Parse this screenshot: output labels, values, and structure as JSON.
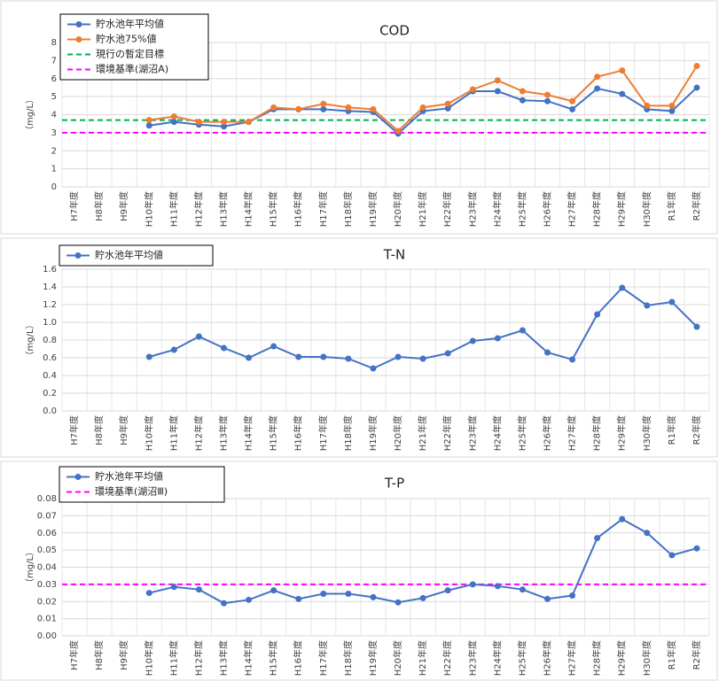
{
  "chart_data": [
    {
      "type": "line",
      "title": "COD",
      "y_label": "（mg/L）",
      "categories": [
        "H7年度",
        "H8年度",
        "H9年度",
        "H10年度",
        "H11年度",
        "H12年度",
        "H13年度",
        "H14年度",
        "H15年度",
        "H16年度",
        "H17年度",
        "H18年度",
        "H19年度",
        "H20年度",
        "H21年度",
        "H22年度",
        "H23年度",
        "H24年度",
        "H25年度",
        "H26年度",
        "H27年度",
        "H28年度",
        "H29年度",
        "H30年度",
        "R1年度",
        "R2年度"
      ],
      "series": [
        {
          "name": "貯水池年平均値",
          "color": "#4472c4",
          "values": [
            null,
            null,
            null,
            3.4,
            3.6,
            3.45,
            3.35,
            3.6,
            4.3,
            4.3,
            4.3,
            4.2,
            4.15,
            2.95,
            4.2,
            4.35,
            5.3,
            5.3,
            4.8,
            4.75,
            4.3,
            5.45,
            5.15,
            4.3,
            4.2,
            5.5
          ]
        },
        {
          "name": "貯水池75%値",
          "color": "#ed7d31",
          "values": [
            null,
            null,
            null,
            3.7,
            3.9,
            3.6,
            3.6,
            3.6,
            4.4,
            4.3,
            4.6,
            4.4,
            4.3,
            3.1,
            4.4,
            4.6,
            5.4,
            5.9,
            5.3,
            5.1,
            4.75,
            6.1,
            6.45,
            4.5,
            4.5,
            6.7
          ]
        }
      ],
      "reference_lines": [
        {
          "name": "現行の暫定目標",
          "color": "#00b050",
          "value": 3.7
        },
        {
          "name": "環境基準(湖沼A)",
          "color": "#ff00ff",
          "value": 3.0
        }
      ],
      "ylim": [
        0,
        8
      ],
      "yticks": [
        0,
        1,
        2,
        3,
        4,
        5,
        6,
        7,
        8
      ],
      "grid": true
    },
    {
      "type": "line",
      "title": "T-N",
      "y_label": "（mg/L）",
      "categories": [
        "H7年度",
        "H8年度",
        "H9年度",
        "H10年度",
        "H11年度",
        "H12年度",
        "H13年度",
        "H14年度",
        "H15年度",
        "H16年度",
        "H17年度",
        "H18年度",
        "H19年度",
        "H20年度",
        "H21年度",
        "H22年度",
        "H23年度",
        "H24年度",
        "H25年度",
        "H26年度",
        "H27年度",
        "H28年度",
        "H29年度",
        "H30年度",
        "R1年度",
        "R2年度"
      ],
      "series": [
        {
          "name": "貯水池年平均値",
          "color": "#4472c4",
          "values": [
            null,
            null,
            null,
            0.61,
            0.69,
            0.84,
            0.71,
            0.6,
            0.73,
            0.61,
            0.61,
            0.59,
            0.48,
            0.61,
            0.59,
            0.65,
            0.79,
            0.82,
            0.91,
            0.66,
            0.58,
            1.09,
            1.39,
            1.19,
            1.23,
            0.95
          ]
        }
      ],
      "reference_lines": [],
      "ylim": [
        0,
        1.6
      ],
      "yticks": [
        {
          "value": 0,
          "label": "0.0"
        },
        0.2,
        0.4,
        0.6,
        0.8,
        {
          "value": 1,
          "label": "1.0"
        },
        1.2,
        1.4,
        1.6
      ],
      "grid": true
    },
    {
      "type": "line",
      "title": "T-P",
      "y_label": "（mg/L）",
      "categories": [
        "H7年度",
        "H8年度",
        "H9年度",
        "H10年度",
        "H11年度",
        "H12年度",
        "H13年度",
        "H14年度",
        "H15年度",
        "H16年度",
        "H17年度",
        "H18年度",
        "H19年度",
        "H20年度",
        "H21年度",
        "H22年度",
        "H23年度",
        "H24年度",
        "H25年度",
        "H26年度",
        "H27年度",
        "H28年度",
        "H29年度",
        "H30年度",
        "R1年度",
        "R2年度"
      ],
      "series": [
        {
          "name": "貯水池年平均値",
          "color": "#4472c4",
          "values": [
            null,
            null,
            null,
            0.025,
            0.0285,
            0.027,
            0.019,
            0.021,
            0.0265,
            0.0215,
            0.0245,
            0.0245,
            0.0225,
            0.0195,
            0.022,
            0.0265,
            0.03,
            0.029,
            0.027,
            0.0215,
            0.0235,
            0.057,
            0.068,
            0.06,
            0.047,
            0.051
          ]
        }
      ],
      "reference_lines": [
        {
          "name": "環境基準(湖沼Ⅲ)",
          "color": "#ff00ff",
          "value": 0.03
        }
      ],
      "ylim": [
        0,
        0.08
      ],
      "yticks": [
        {
          "value": 0,
          "label": "0.00"
        },
        {
          "value": 0.01,
          "label": "0.01"
        },
        {
          "value": 0.02,
          "label": "0.02"
        },
        {
          "value": 0.03,
          "label": "0.03"
        },
        {
          "value": 0.04,
          "label": "0.04"
        },
        {
          "value": 0.05,
          "label": "0.05"
        },
        {
          "value": 0.06,
          "label": "0.06"
        },
        {
          "value": 0.07,
          "label": "0.07"
        },
        {
          "value": 0.08,
          "label": "0.08"
        }
      ],
      "grid": true
    }
  ]
}
